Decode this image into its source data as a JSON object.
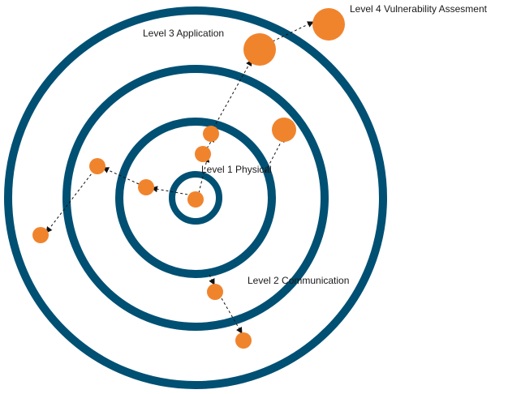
{
  "diagram": {
    "colors": {
      "ring": "#005073",
      "node": "#f0842d",
      "arrow": "#111111",
      "background": "#ffffff"
    },
    "labels": {
      "level1": "Level 1 Physical",
      "level2": "Level 2 Communication",
      "level3": "Level 3 Application",
      "level4": "Level 4 Vulnerability Assesment"
    }
  }
}
